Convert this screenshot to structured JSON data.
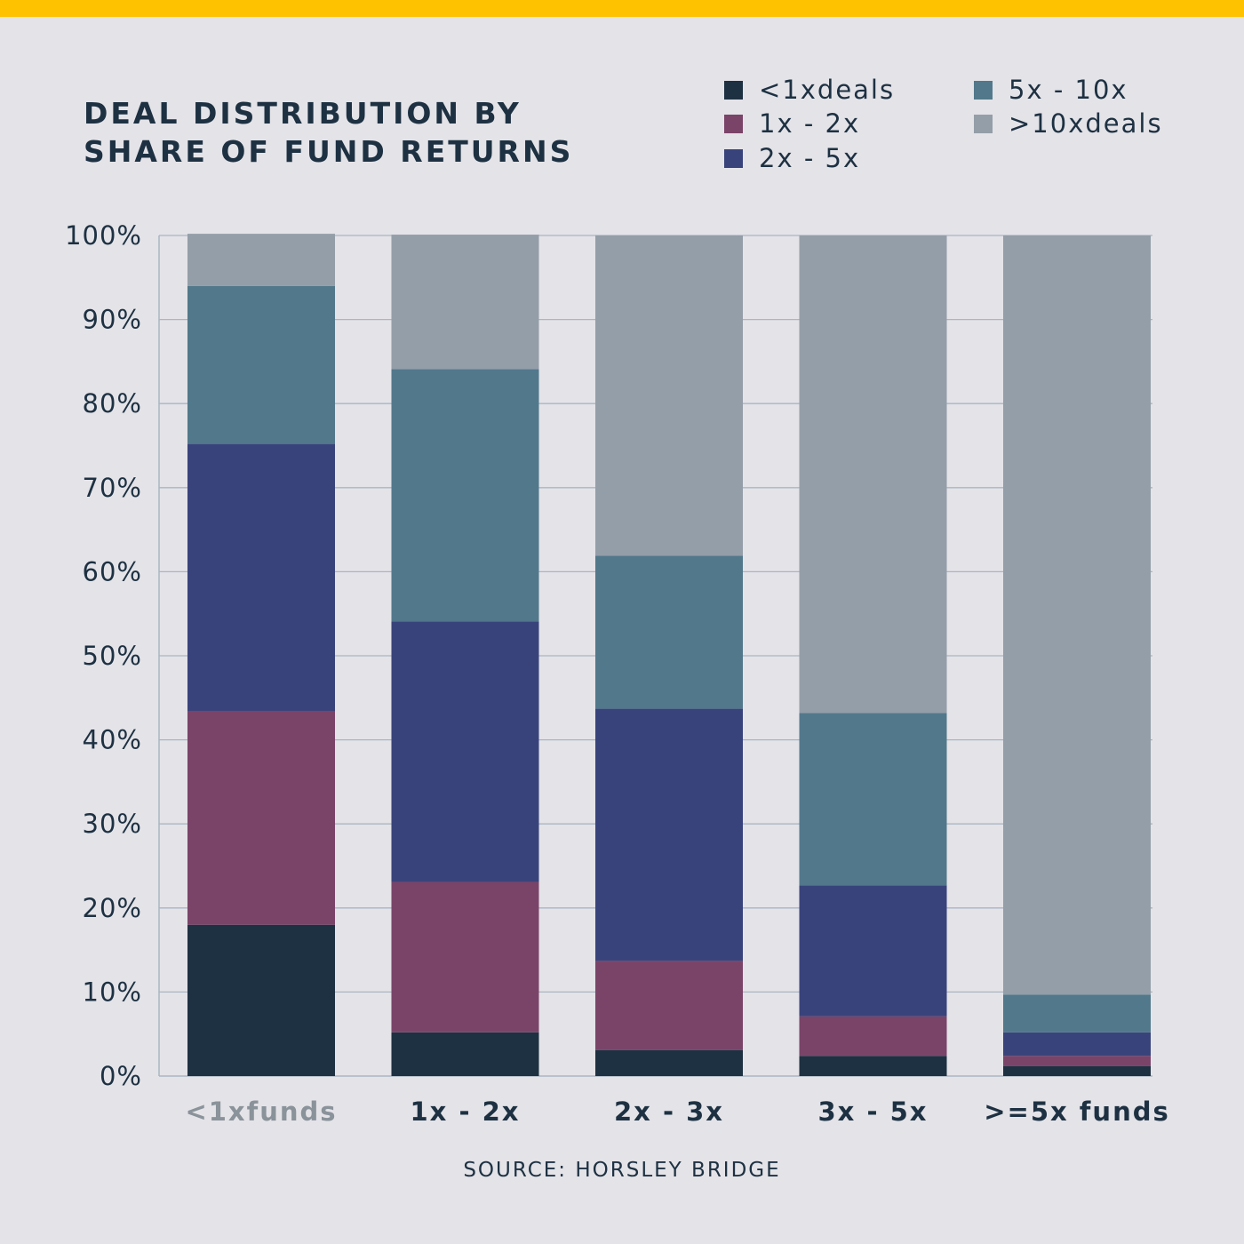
{
  "title_lines": [
    "DEAL DISTRIBUTION BY",
    "SHARE OF FUND RETURNS"
  ],
  "source": "SOURCE: HORSLEY BRIDGE",
  "colors": {
    "top_bar": "#fec200",
    "background": "#e4e3e8",
    "text": "#1d3142",
    "muted_text": "#8a929a",
    "grid": "#a9b6c3"
  },
  "chart_data": {
    "type": "bar",
    "stacked": true,
    "title": "DEAL DISTRIBUTION BY SHARE OF FUND RETURNS",
    "xlabel": "",
    "ylabel": "",
    "ylim": [
      0,
      100
    ],
    "yticks": [
      "0%",
      "10%",
      "20%",
      "30%",
      "40%",
      "50%",
      "60%",
      "70%",
      "80%",
      "90%",
      "100%"
    ],
    "grid": true,
    "legend_position": "top-right",
    "categories": [
      "<1xfunds",
      "1x - 2x",
      "2x - 3x",
      "3x - 5x",
      ">=5x funds"
    ],
    "series": [
      {
        "name": "<1xdeals",
        "color": "#1e3142",
        "values": [
          18,
          5.2,
          3.1,
          2.4,
          1.2
        ]
      },
      {
        "name": "1x - 2x",
        "color": "#7a4469",
        "values": [
          25.4,
          17.9,
          10.6,
          4.7,
          1.2
        ]
      },
      {
        "name": "2x - 5x",
        "color": "#39437b",
        "values": [
          31.8,
          31,
          30,
          15.6,
          2.8
        ]
      },
      {
        "name": "5x - 10x",
        "color": "#52788b",
        "values": [
          18.8,
          30,
          18.2,
          20.5,
          4.5
        ]
      },
      {
        "name": ">10xdeals",
        "color": "#949ea8",
        "values": [
          6.2,
          16,
          38.1,
          56.8,
          90.3
        ]
      }
    ]
  }
}
